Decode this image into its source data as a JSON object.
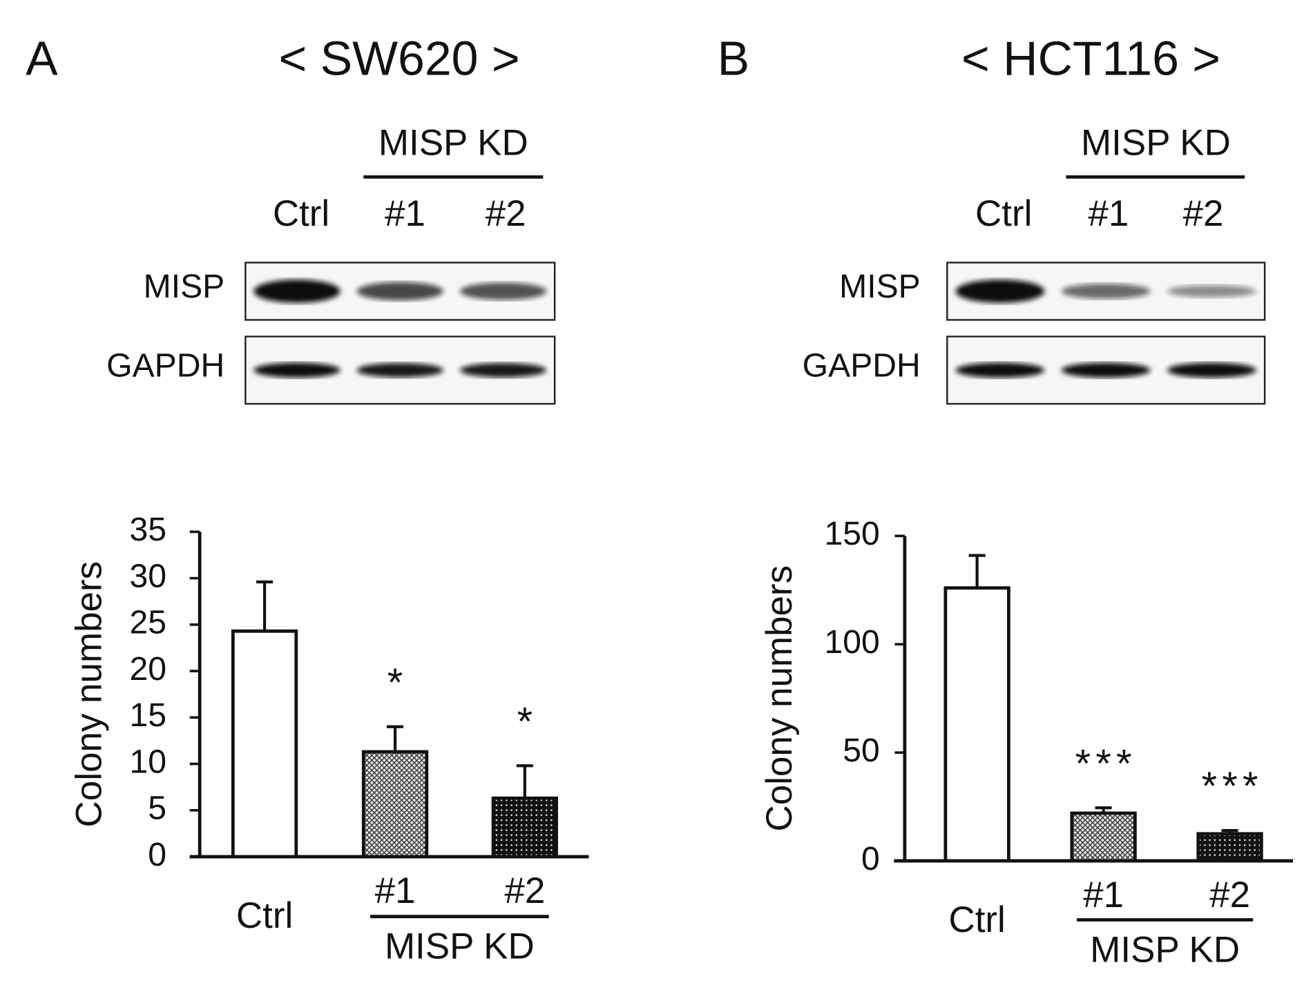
{
  "chart_data": [
    {
      "type": "bar",
      "panel": "A",
      "title": "< SW620 >",
      "blot": {
        "group_label": "MISP KD",
        "lanes": [
          "Ctrl",
          "#1",
          "#2"
        ],
        "rows": [
          "MISP",
          "GAPDH"
        ]
      },
      "ylabel": "Colony numbers",
      "categories": [
        "Ctrl",
        "#1",
        "#2"
      ],
      "group_label": "MISP KD",
      "values": [
        24.3,
        11.3,
        6.3
      ],
      "errors": [
        5.3,
        2.7,
        3.5
      ],
      "annotations": [
        null,
        "*",
        "*"
      ],
      "ylim": [
        0,
        35
      ],
      "yticks": [
        0,
        5,
        10,
        15,
        20,
        25,
        30,
        35
      ]
    },
    {
      "type": "bar",
      "panel": "B",
      "title": "< HCT116 >",
      "blot": {
        "group_label": "MISP KD",
        "lanes": [
          "Ctrl",
          "#1",
          "#2"
        ],
        "rows": [
          "MISP",
          "GAPDH"
        ]
      },
      "ylabel": "Colony numbers",
      "categories": [
        "Ctrl",
        "#1",
        "#2"
      ],
      "group_label": "MISP KD",
      "values": [
        126,
        22,
        12.5
      ],
      "errors": [
        15,
        2.5,
        1.5
      ],
      "annotations": [
        null,
        "***",
        "***"
      ],
      "ylim": [
        0,
        150
      ],
      "yticks": [
        0,
        50,
        100,
        150
      ]
    }
  ]
}
